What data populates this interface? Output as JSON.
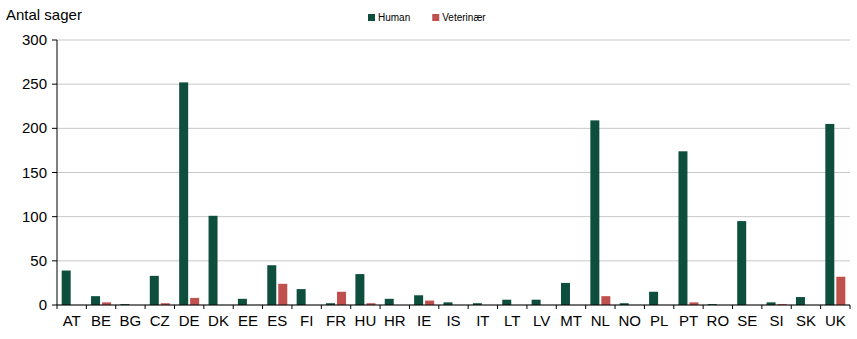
{
  "chart_data": {
    "type": "bar",
    "y_label": "Antal sager",
    "categories": [
      "AT",
      "BE",
      "BG",
      "CZ",
      "DE",
      "DK",
      "EE",
      "ES",
      "FI",
      "FR",
      "HU",
      "HR",
      "IE",
      "IS",
      "IT",
      "LT",
      "LV",
      "MT",
      "NL",
      "NO",
      "PL",
      "PT",
      "RO",
      "SE",
      "SI",
      "SK",
      "UK"
    ],
    "series": [
      {
        "name": "Human",
        "color": "#0d4f3c",
        "values": [
          39,
          10,
          1,
          33,
          252,
          101,
          7,
          45,
          18,
          2,
          35,
          7,
          11,
          3,
          2,
          6,
          6,
          25,
          209,
          2,
          15,
          174,
          1,
          95,
          3,
          9,
          205
        ]
      },
      {
        "name": "Veterinær",
        "color": "#c0504d",
        "values": [
          0,
          3,
          0,
          2,
          8,
          0,
          0,
          24,
          0,
          15,
          2,
          0,
          5,
          0,
          0,
          0,
          0,
          0,
          10,
          0,
          0,
          3,
          0,
          0,
          1,
          0,
          32
        ]
      }
    ],
    "ylim": [
      0,
      300
    ],
    "yticks": [
      0,
      50,
      100,
      150,
      200,
      250,
      300
    ],
    "grid": true,
    "legend": "top"
  }
}
